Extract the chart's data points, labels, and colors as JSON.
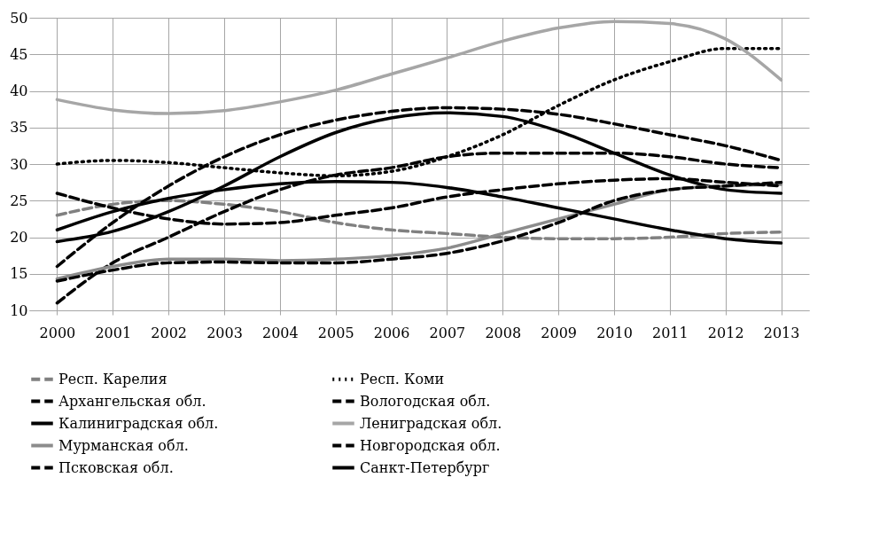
{
  "chart_data": {
    "type": "line",
    "categories": [
      "2000",
      "2001",
      "2002",
      "2003",
      "2004",
      "2005",
      "2006",
      "2007",
      "2008",
      "2009",
      "2010",
      "2011",
      "2012",
      "2013"
    ],
    "ylim": [
      10,
      50
    ],
    "yticks": [
      10,
      15,
      20,
      25,
      30,
      35,
      40,
      45,
      50
    ],
    "grid": true,
    "legend": "bottom",
    "marker": "none",
    "series": [
      {
        "name": "Респ. Карелия",
        "color": "#808080",
        "line_style": "dashed",
        "values": [
          23,
          24.5,
          25,
          24.5,
          23.5,
          22,
          21,
          20.5,
          20,
          19.8,
          19.8,
          20,
          20.5,
          20.7
        ]
      },
      {
        "name": "Респ. Коми",
        "color": "#000000",
        "line_style": "dotted",
        "values": [
          30,
          30.5,
          30.2,
          29.5,
          28.8,
          28.4,
          29,
          31,
          34,
          38,
          41.5,
          44,
          45.8,
          45.8
        ]
      },
      {
        "name": "Архангельская обл.",
        "color": "#000000",
        "line_style": "dashed",
        "values": [
          16,
          22,
          27,
          31,
          34,
          36,
          37.2,
          37.7,
          37.5,
          36.8,
          35.5,
          34,
          32.5,
          30.5
        ]
      },
      {
        "name": "Вологодская обл.",
        "color": "#000000",
        "line_style": "dashed",
        "values": [
          11,
          16.5,
          20,
          23.5,
          26.5,
          28.5,
          29.5,
          31,
          31.5,
          31.5,
          31.5,
          31,
          30,
          29.5
        ]
      },
      {
        "name": "Калиниградская обл.",
        "color": "#000000",
        "line_style": "solid",
        "values": [
          19.4,
          20.8,
          23.5,
          27,
          31,
          34.3,
          36.3,
          37,
          36.5,
          34.5,
          31.5,
          28.5,
          26.5,
          26
        ]
      },
      {
        "name": "Лениградская обл.",
        "color": "#a6a6a6",
        "line_style": "solid",
        "values": [
          38.8,
          37.4,
          36.9,
          37.3,
          38.5,
          40.1,
          42.3,
          44.5,
          46.8,
          48.6,
          49.5,
          49.2,
          47.1,
          41.5
        ]
      },
      {
        "name": "Мурманская обл.",
        "color": "#8c8c8c",
        "line_style": "solid",
        "values": [
          14.3,
          16,
          17,
          17,
          16.8,
          17,
          17.5,
          18.5,
          20.5,
          22.5,
          24.5,
          26.5,
          27,
          27.2
        ]
      },
      {
        "name": "Новгородская обл.",
        "color": "#000000",
        "line_style": "dashed",
        "values": [
          26,
          24,
          22.5,
          21.8,
          22,
          23,
          24,
          25.5,
          26.5,
          27.3,
          27.8,
          28,
          27.5,
          27
        ]
      },
      {
        "name": "Псковская обл.",
        "color": "#000000",
        "line_style": "dashed",
        "values": [
          14,
          15.5,
          16.5,
          16.6,
          16.5,
          16.5,
          17,
          17.8,
          19.5,
          22,
          25,
          26.5,
          27,
          27.5
        ]
      },
      {
        "name": "Санкт-Петербург",
        "color": "#000000",
        "line_style": "solid",
        "values": [
          21,
          23.5,
          25.3,
          26.5,
          27.3,
          27.6,
          27.5,
          26.8,
          25.5,
          24,
          22.5,
          21,
          19.8,
          19.2
        ]
      }
    ]
  }
}
